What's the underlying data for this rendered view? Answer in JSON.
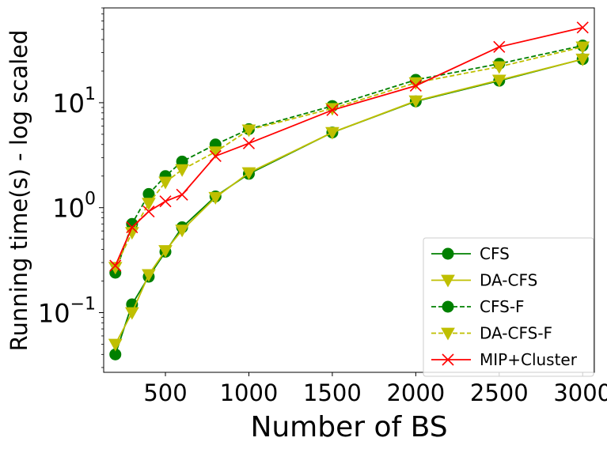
{
  "chart_data": {
    "type": "line",
    "title": "",
    "xlabel": "Number of BS",
    "ylabel": "Running time(s) - log scaled",
    "yscale": "log",
    "xlim": [
      130,
      3070
    ],
    "ylim": [
      0.027,
      80
    ],
    "x_ticks": [
      {
        "value": 500,
        "label": "500"
      },
      {
        "value": 1000,
        "label": "1000"
      },
      {
        "value": 1500,
        "label": "1500"
      },
      {
        "value": 2000,
        "label": "2000"
      },
      {
        "value": 2500,
        "label": "2500"
      },
      {
        "value": 3000,
        "label": "3000"
      }
    ],
    "y_ticks": [
      {
        "value": 0.1,
        "base": "10",
        "exp": "−1"
      },
      {
        "value": 1,
        "base": "10",
        "exp": "0"
      },
      {
        "value": 10,
        "base": "10",
        "exp": "1"
      }
    ],
    "grid": false,
    "legend_position": "bottom-right",
    "series": [
      {
        "name": "CFS",
        "color": "#008000",
        "dash": "solid",
        "marker": "circle",
        "x": [
          200,
          300,
          400,
          500,
          600,
          800,
          1000,
          1500,
          2000,
          2500,
          3000
        ],
        "y": [
          0.04,
          0.12,
          0.22,
          0.38,
          0.65,
          1.28,
          2.1,
          5.2,
          10.3,
          16.2,
          26
        ]
      },
      {
        "name": "DA-CFS",
        "color": "#bfbf00",
        "dash": "solid",
        "marker": "triangle-down",
        "x": [
          200,
          300,
          400,
          500,
          600,
          800,
          1000,
          1500,
          2000,
          2500,
          3000
        ],
        "y": [
          0.05,
          0.1,
          0.23,
          0.39,
          0.61,
          1.25,
          2.15,
          5.2,
          10.4,
          16.4,
          26
        ]
      },
      {
        "name": "CFS-F",
        "color": "#008000",
        "dash": "dashed",
        "marker": "circle",
        "x": [
          200,
          300,
          400,
          500,
          600,
          800,
          1000,
          1500,
          2000,
          2500,
          3000
        ],
        "y": [
          0.24,
          0.7,
          1.35,
          2.0,
          2.75,
          4.0,
          5.6,
          9.3,
          16.5,
          23.5,
          35
        ]
      },
      {
        "name": "DA-CFS-F",
        "color": "#bfbf00",
        "dash": "dashed",
        "marker": "triangle-down",
        "x": [
          200,
          300,
          400,
          500,
          600,
          800,
          1000,
          1500,
          2000,
          2500,
          3000
        ],
        "y": [
          0.27,
          0.58,
          1.1,
          1.75,
          2.3,
          3.4,
          5.5,
          8.8,
          15.5,
          22,
          34
        ]
      },
      {
        "name": "MIP+Cluster",
        "color": "#ff0000",
        "dash": "solid",
        "marker": "x",
        "x": [
          200,
          300,
          400,
          500,
          600,
          800,
          1000,
          1500,
          2000,
          2500,
          3000
        ],
        "y": [
          0.28,
          0.65,
          0.92,
          1.15,
          1.33,
          3.1,
          4.1,
          8.5,
          14.5,
          34,
          52
        ]
      }
    ]
  }
}
